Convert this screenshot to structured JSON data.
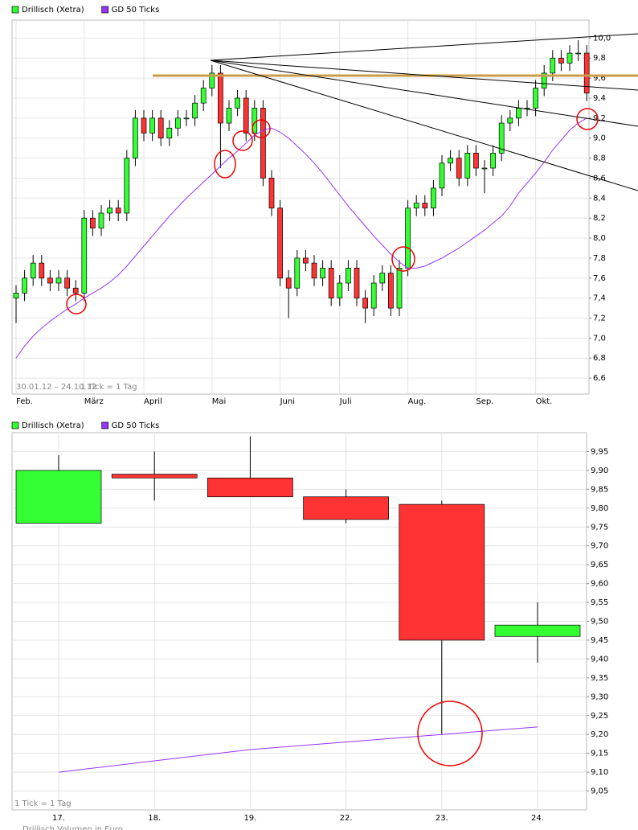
{
  "chart_data": [
    {
      "type": "candlestick",
      "categories": [
        "Feb.",
        null,
        null,
        null,
        null,
        null,
        null,
        null,
        "März",
        null,
        null,
        null,
        null,
        null,
        null,
        "April",
        null,
        null,
        null,
        null,
        null,
        null,
        null,
        "Mai",
        null,
        null,
        null,
        null,
        null,
        null,
        null,
        "Juni",
        null,
        null,
        null,
        null,
        null,
        null,
        "Juli",
        null,
        null,
        null,
        null,
        null,
        null,
        null,
        "Aug.",
        null,
        null,
        null,
        null,
        null,
        null,
        null,
        "Sep.",
        null,
        null,
        null,
        null,
        null,
        null,
        "Okt.",
        null,
        null,
        null,
        null,
        null,
        null
      ],
      "series": [
        {
          "name": "Drillisch (Xetra)",
          "color": "#33ff33",
          "up_color": "#33ff33",
          "down_color": "#ff3333",
          "open": [
            7.4,
            7.45,
            7.6,
            7.75,
            7.6,
            7.55,
            7.6,
            7.5,
            7.45,
            8.2,
            8.1,
            8.25,
            8.3,
            8.25,
            8.8,
            9.2,
            9.05,
            9.2,
            9.0,
            9.1,
            9.2,
            9.2,
            9.35,
            9.5,
            9.65,
            9.15,
            9.3,
            9.4,
            9.05,
            9.3,
            8.6,
            8.3,
            7.6,
            7.5,
            7.8,
            7.75,
            7.6,
            7.7,
            7.4,
            7.55,
            7.7,
            7.4,
            7.3,
            7.55,
            7.65,
            7.3,
            7.7,
            8.3,
            8.35,
            8.3,
            8.5,
            8.75,
            8.8,
            8.6,
            8.85,
            8.7,
            8.7,
            8.85,
            9.15,
            9.2,
            9.3,
            9.3,
            9.5,
            9.65,
            9.8,
            9.75,
            9.85,
            9.85
          ],
          "high": [
            7.53,
            7.68,
            7.83,
            7.83,
            7.68,
            7.68,
            7.68,
            7.58,
            8.28,
            8.28,
            8.33,
            8.38,
            8.38,
            8.88,
            9.28,
            9.28,
            9.28,
            9.28,
            9.18,
            9.28,
            9.28,
            9.43,
            9.58,
            9.73,
            9.73,
            9.38,
            9.48,
            9.48,
            9.38,
            9.38,
            8.68,
            8.38,
            7.68,
            7.88,
            7.88,
            7.83,
            7.78,
            7.78,
            7.63,
            7.78,
            7.78,
            7.48,
            7.63,
            7.73,
            7.73,
            7.78,
            8.38,
            8.43,
            8.43,
            8.58,
            8.83,
            8.88,
            8.88,
            8.93,
            8.93,
            8.78,
            8.93,
            9.23,
            9.28,
            9.38,
            9.38,
            9.58,
            9.73,
            9.88,
            9.88,
            9.93,
            9.98,
            9.93
          ],
          "low": [
            7.15,
            7.37,
            7.52,
            7.52,
            7.47,
            7.47,
            7.42,
            7.37,
            7.37,
            8.02,
            8.02,
            8.17,
            8.17,
            8.17,
            8.72,
            8.97,
            8.97,
            8.92,
            8.92,
            9.02,
            9.12,
            9.12,
            9.27,
            9.42,
            8.7,
            9.07,
            9.22,
            8.97,
            8.97,
            8.52,
            8.22,
            7.52,
            7.2,
            7.42,
            7.67,
            7.52,
            7.52,
            7.32,
            7.32,
            7.47,
            7.32,
            7.15,
            7.22,
            7.47,
            7.22,
            7.22,
            7.62,
            8.22,
            8.22,
            8.22,
            8.42,
            8.67,
            8.52,
            8.52,
            8.62,
            8.45,
            8.62,
            8.77,
            9.07,
            9.12,
            9.22,
            9.22,
            9.42,
            9.57,
            9.67,
            9.67,
            9.77,
            9.37
          ],
          "close": [
            7.45,
            7.6,
            7.75,
            7.6,
            7.55,
            7.6,
            7.5,
            7.45,
            8.2,
            8.1,
            8.25,
            8.3,
            8.25,
            8.8,
            9.2,
            9.05,
            9.2,
            9.0,
            9.1,
            9.2,
            9.2,
            9.35,
            9.5,
            9.65,
            9.15,
            9.3,
            9.4,
            9.05,
            9.3,
            8.6,
            8.3,
            7.6,
            7.5,
            7.8,
            7.75,
            7.6,
            7.7,
            7.4,
            7.55,
            7.7,
            7.4,
            7.3,
            7.55,
            7.65,
            7.3,
            7.7,
            8.3,
            8.35,
            8.3,
            8.5,
            8.75,
            8.8,
            8.6,
            8.85,
            8.7,
            8.7,
            8.85,
            9.15,
            9.2,
            9.3,
            9.3,
            9.5,
            9.65,
            9.8,
            9.75,
            9.85,
            9.85,
            9.45
          ]
        },
        {
          "name": "GD 50 Ticks",
          "color": "#9933ff",
          "values": [
            6.8,
            6.92,
            7.02,
            7.1,
            7.17,
            7.23,
            7.29,
            7.34,
            7.4,
            7.45,
            7.5,
            7.56,
            7.63,
            7.72,
            7.82,
            7.92,
            8.02,
            8.12,
            8.22,
            8.31,
            8.4,
            8.48,
            8.56,
            8.64,
            8.72,
            8.8,
            8.87,
            8.95,
            9.03,
            9.08,
            9.1,
            9.06,
            9.0,
            8.92,
            8.84,
            8.75,
            8.65,
            8.54,
            8.43,
            8.32,
            8.22,
            8.12,
            8.02,
            7.93,
            7.84,
            7.76,
            7.7,
            7.7,
            7.72,
            7.76,
            7.8,
            7.85,
            7.9,
            7.96,
            8.02,
            8.08,
            8.15,
            8.22,
            8.32,
            8.45,
            8.55,
            8.65,
            8.76,
            8.88,
            8.98,
            9.08,
            9.15,
            9.2
          ]
        }
      ],
      "ylim": [
        6.44,
        10.18
      ],
      "yticks": [
        {
          "value": 6.6,
          "label": "6,6"
        },
        {
          "value": 6.8,
          "label": "6,8"
        },
        {
          "value": 7.0,
          "label": "7,0"
        },
        {
          "value": 7.2,
          "label": "7,2"
        },
        {
          "value": 7.4,
          "label": "7,4"
        },
        {
          "value": 7.6,
          "label": "7,6"
        },
        {
          "value": 7.8,
          "label": "7,8"
        },
        {
          "value": 8.0,
          "label": "8,0"
        },
        {
          "value": 8.2,
          "label": "8,2"
        },
        {
          "value": 8.4,
          "label": "8,4"
        },
        {
          "value": 8.6,
          "label": "8,6"
        },
        {
          "value": 8.8,
          "label": "8,8"
        },
        {
          "value": 9.0,
          "label": "9,0"
        },
        {
          "value": 9.2,
          "label": "9,2"
        },
        {
          "value": 9.4,
          "label": "9,4"
        },
        {
          "value": 9.6,
          "label": "9,6"
        },
        {
          "value": 9.8,
          "label": "9,8"
        },
        {
          "value": 10.0,
          "label": "10,0"
        }
      ],
      "grid": true,
      "annotations": [
        "30.01.12 – 24.10.12",
        "1 Tick = 1 Tag"
      ]
    },
    {
      "type": "candlestick",
      "categories": [
        "17.",
        "18.",
        "19.",
        "22.",
        "23.",
        "24."
      ],
      "series": [
        {
          "name": "Drillisch (Xetra)",
          "color": "#33ff33",
          "up_color": "#33ff33",
          "down_color": "#ff3333",
          "open": [
            9.76,
            9.89,
            9.88,
            9.83,
            9.81,
            9.46
          ],
          "high": [
            9.94,
            9.95,
            9.99,
            9.85,
            9.82,
            9.55
          ],
          "low": [
            9.76,
            9.82,
            9.83,
            9.76,
            9.2,
            9.39
          ],
          "close": [
            9.9,
            9.88,
            9.83,
            9.77,
            9.45,
            9.49
          ]
        },
        {
          "name": "GD 50 Ticks",
          "color": "#9933ff",
          "values": [
            9.1,
            9.13,
            9.16,
            9.18,
            9.2,
            9.22
          ]
        }
      ],
      "ylim": [
        9.0,
        10.0
      ],
      "yticks": [
        {
          "value": 9.05,
          "label": "9,05"
        },
        {
          "value": 9.1,
          "label": "9,10"
        },
        {
          "value": 9.15,
          "label": "9,15"
        },
        {
          "value": 9.2,
          "label": "9,20"
        },
        {
          "value": 9.25,
          "label": "9,25"
        },
        {
          "value": 9.3,
          "label": "9,30"
        },
        {
          "value": 9.35,
          "label": "9,35"
        },
        {
          "value": 9.4,
          "label": "9,40"
        },
        {
          "value": 9.45,
          "label": "9,45"
        },
        {
          "value": 9.5,
          "label": "9,50"
        },
        {
          "value": 9.55,
          "label": "9,55"
        },
        {
          "value": 9.6,
          "label": "9,60"
        },
        {
          "value": 9.65,
          "label": "9,65"
        },
        {
          "value": 9.7,
          "label": "9,70"
        },
        {
          "value": 9.75,
          "label": "9,75"
        },
        {
          "value": 9.8,
          "label": "9,80"
        },
        {
          "value": 9.85,
          "label": "9,85"
        },
        {
          "value": 9.9,
          "label": "9,90"
        },
        {
          "value": 9.95,
          "label": "9,95"
        }
      ],
      "grid": true,
      "annotations": [
        "1 Tick = 1 Tag",
        "Drillisch Volumen in Euro"
      ]
    }
  ]
}
